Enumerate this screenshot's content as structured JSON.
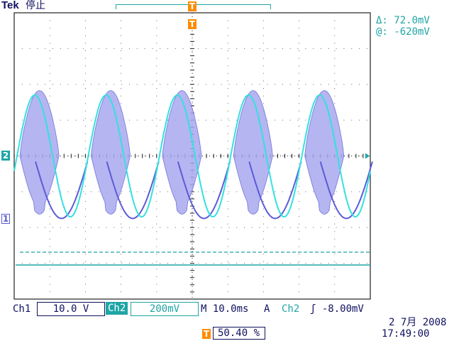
{
  "header": {
    "brand": "Tek",
    "status": "停止"
  },
  "cursor_readout": {
    "delta": "Δ:  72.0mV",
    "at": "@: -620mV"
  },
  "markers": {
    "trigger": "T",
    "ch2": "2",
    "ch1": "1"
  },
  "footer": {
    "ch1_label": "Ch1",
    "ch1_scale": "10.0 V",
    "ch2_label": "Ch2",
    "ch2_scale": "200mV",
    "timebase": "M 10.0ms",
    "trigger_mode": "A",
    "trigger_source": "Ch2",
    "trigger_level": "ʃ -8.00mV",
    "trigger_position": "50.40 %",
    "date": "2 7月  2008",
    "time": "17:49:00"
  },
  "colors": {
    "ch1": "#5b5bd6",
    "ch1_fill": "#a9a9ef",
    "ch2": "#35e0e0",
    "accent": "#1fa5a5",
    "trigger": "#ff8a00",
    "grid": "#000000"
  },
  "chart_data": {
    "type": "line",
    "grid_divisions": {
      "x": 10,
      "y": 8
    },
    "series": [
      {
        "name": "Ch1",
        "shape": "modulated bursts",
        "periods_on_screen": 5,
        "polarity": "negative half-cycle envelope"
      },
      {
        "name": "Ch2",
        "shape": "sine",
        "periods_on_screen": 5,
        "amplitude_divisions": 1.7
      }
    ]
  }
}
